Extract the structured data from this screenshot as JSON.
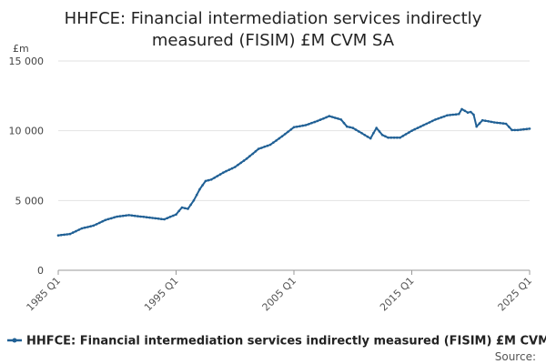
{
  "chart_data": {
    "type": "line",
    "title_lines": [
      "HHFCE: Financial intermediation services indirectly",
      "measured (FISIM) £M CVM SA"
    ],
    "unit_label": "£m",
    "ylim": [
      0,
      15000
    ],
    "y_ticks": [
      0,
      5000,
      10000,
      15000
    ],
    "y_tick_labels": [
      "0",
      "5 000",
      "10 000",
      "15 000"
    ],
    "x_range": [
      "1985 Q1",
      "2025 Q1"
    ],
    "x_tick_labels": [
      "1985 Q1",
      "1995 Q1",
      "2005 Q1",
      "2015 Q1",
      "2025 Q1"
    ],
    "grid": true,
    "legend_position": "bottom",
    "color": "#206095",
    "series": [
      {
        "name": "HHFCE: Financial intermediation services indirectly measured (FISIM) £M CVM SA",
        "points": [
          [
            "1985 Q1",
            2500
          ],
          [
            "1986 Q1",
            2600
          ],
          [
            "1987 Q1",
            3000
          ],
          [
            "1988 Q1",
            3200
          ],
          [
            "1989 Q1",
            3600
          ],
          [
            "1990 Q1",
            3850
          ],
          [
            "1991 Q1",
            3950
          ],
          [
            "1992 Q1",
            3850
          ],
          [
            "1993 Q1",
            3750
          ],
          [
            "1994 Q1",
            3650
          ],
          [
            "1995 Q1",
            4000
          ],
          [
            "1995 Q3",
            4500
          ],
          [
            "1996 Q1",
            4400
          ],
          [
            "1996 Q3",
            5000
          ],
          [
            "1997 Q1",
            5800
          ],
          [
            "1997 Q3",
            6400
          ],
          [
            "1998 Q1",
            6500
          ],
          [
            "1999 Q1",
            7000
          ],
          [
            "2000 Q1",
            7400
          ],
          [
            "2001 Q1",
            8000
          ],
          [
            "2002 Q1",
            8700
          ],
          [
            "2003 Q1",
            9000
          ],
          [
            "2004 Q1",
            9600
          ],
          [
            "2005 Q1",
            10250
          ],
          [
            "2006 Q1",
            10400
          ],
          [
            "2007 Q1",
            10700
          ],
          [
            "2008 Q1",
            11050
          ],
          [
            "2009 Q1",
            10800
          ],
          [
            "2009 Q3",
            10300
          ],
          [
            "2010 Q1",
            10200
          ],
          [
            "2011 Q1",
            9700
          ],
          [
            "2011 Q3",
            9450
          ],
          [
            "2012 Q1",
            10200
          ],
          [
            "2012 Q3",
            9700
          ],
          [
            "2013 Q1",
            9500
          ],
          [
            "2014 Q1",
            9500
          ],
          [
            "2015 Q1",
            10000
          ],
          [
            "2016 Q1",
            10400
          ],
          [
            "2017 Q1",
            10800
          ],
          [
            "2018 Q1",
            11100
          ],
          [
            "2019 Q1",
            11200
          ],
          [
            "2019 Q2",
            11550
          ],
          [
            "2019 Q4",
            11300
          ],
          [
            "2020 Q1",
            11350
          ],
          [
            "2020 Q2",
            11150
          ],
          [
            "2020 Q3",
            10300
          ],
          [
            "2021 Q1",
            10750
          ],
          [
            "2022 Q1",
            10600
          ],
          [
            "2023 Q1",
            10500
          ],
          [
            "2023 Q3",
            10050
          ],
          [
            "2024 Q1",
            10050
          ],
          [
            "2025 Q1",
            10150
          ]
        ]
      }
    ]
  },
  "source_label": "Source:"
}
